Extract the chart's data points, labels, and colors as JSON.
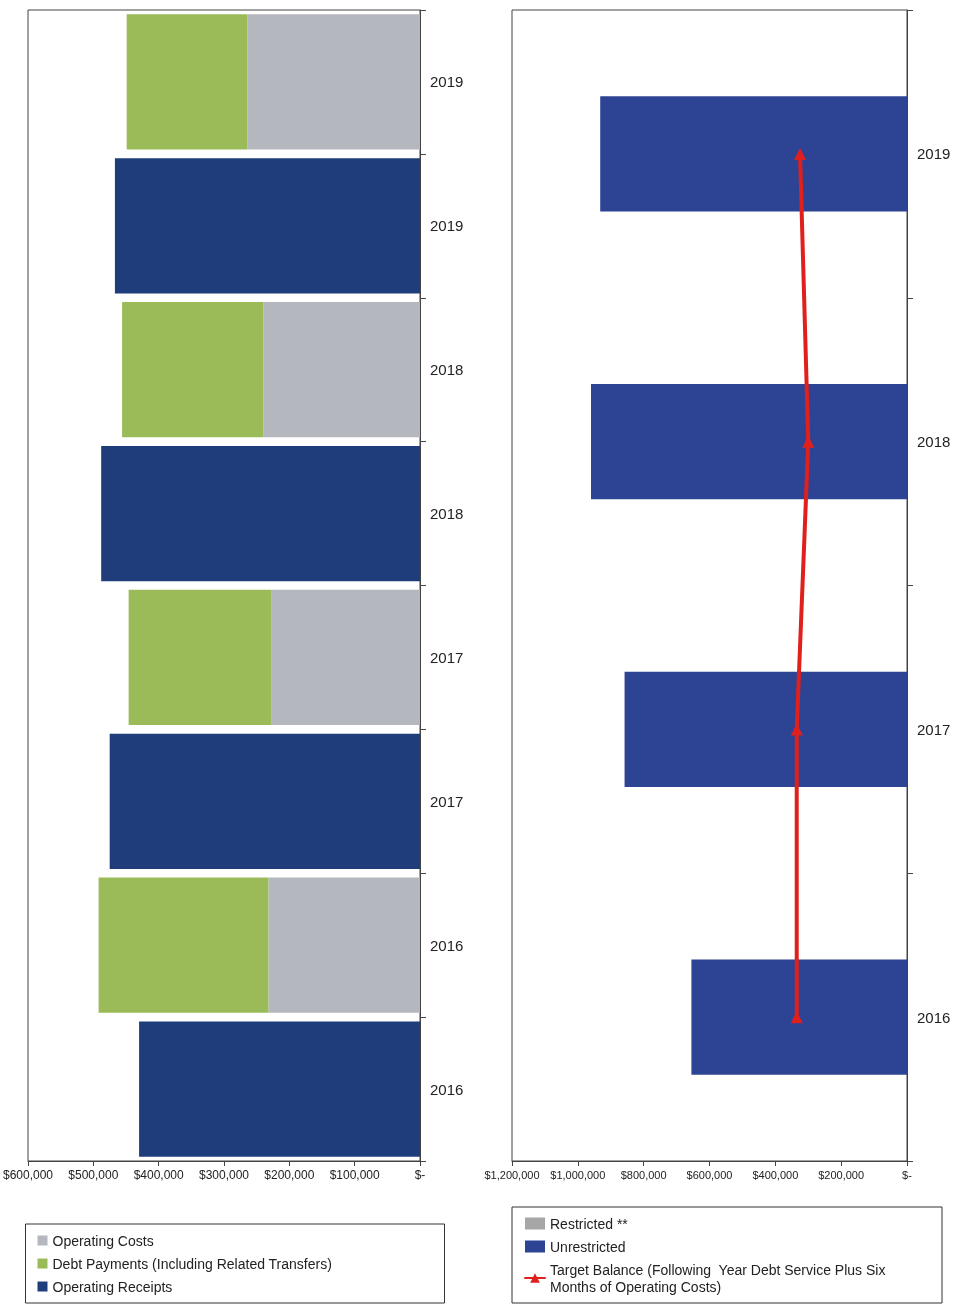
{
  "chart_data": [
    {
      "type": "bar",
      "stacked": true,
      "orientation": "horizontal",
      "legend": "bottom",
      "grid": false,
      "categories": [
        "2019",
        "2019",
        "2018",
        "2018",
        "2017",
        "2017",
        "2016",
        "2016"
      ],
      "series": [
        {
          "name": "Operating Costs",
          "color": "#b4b7be",
          "values": [
            264000,
            null,
            240000,
            null,
            227000,
            null,
            232000,
            null
          ]
        },
        {
          "name": "Debt Payments (Including Related Transfers)",
          "color": "#9bbb59",
          "values": [
            185000,
            null,
            216000,
            null,
            219000,
            null,
            260000,
            null
          ]
        },
        {
          "name": "Operating Receipts",
          "color": "#1f3d7a",
          "values": [
            null,
            467000,
            null,
            488000,
            null,
            475000,
            null,
            430000
          ]
        }
      ],
      "xlim": [
        600000,
        0
      ],
      "xticks": [
        {
          "value": 0,
          "label": "$-"
        },
        {
          "value": 100000,
          "label": "$100,000"
        },
        {
          "value": 200000,
          "label": "$200,000"
        },
        {
          "value": 300000,
          "label": "$300,000"
        },
        {
          "value": 400000,
          "label": "$400,000"
        },
        {
          "value": 500000,
          "label": "$500,000"
        },
        {
          "value": 600000,
          "label": "$600,000"
        }
      ]
    },
    {
      "type": "bar",
      "stacked": true,
      "orientation": "horizontal",
      "legend": "bottom left",
      "grid": false,
      "categories": [
        "2019",
        "2018",
        "2017",
        "2016"
      ],
      "series": [
        {
          "name": "Restricted **",
          "color": "#a6a6a6",
          "values": [
            null,
            null,
            null,
            null
          ]
        },
        {
          "name": "Unrestricted",
          "color": "#2d4394",
          "values": [
            932000,
            960000,
            858000,
            655000
          ]
        },
        {
          "name": "Target Balance (Following  Year Debt Service Plus Six Months of Operating Costs)",
          "type": "line",
          "marker": "triangle",
          "line_style": "solid",
          "color": "#e0201c",
          "values": [
            325000,
            300000,
            335000,
            335000
          ]
        }
      ],
      "xlim": [
        1200000,
        0
      ],
      "xticks": [
        {
          "value": 0,
          "label": "$-"
        },
        {
          "value": 200000,
          "label": "$200,000"
        },
        {
          "value": 400000,
          "label": "$400,000"
        },
        {
          "value": 600000,
          "label": "$600,000"
        },
        {
          "value": 800000,
          "label": "$800,000"
        },
        {
          "value": 1000000,
          "label": "$1,000,000"
        },
        {
          "value": 1200000,
          "label": "$1,200,000"
        }
      ]
    }
  ]
}
